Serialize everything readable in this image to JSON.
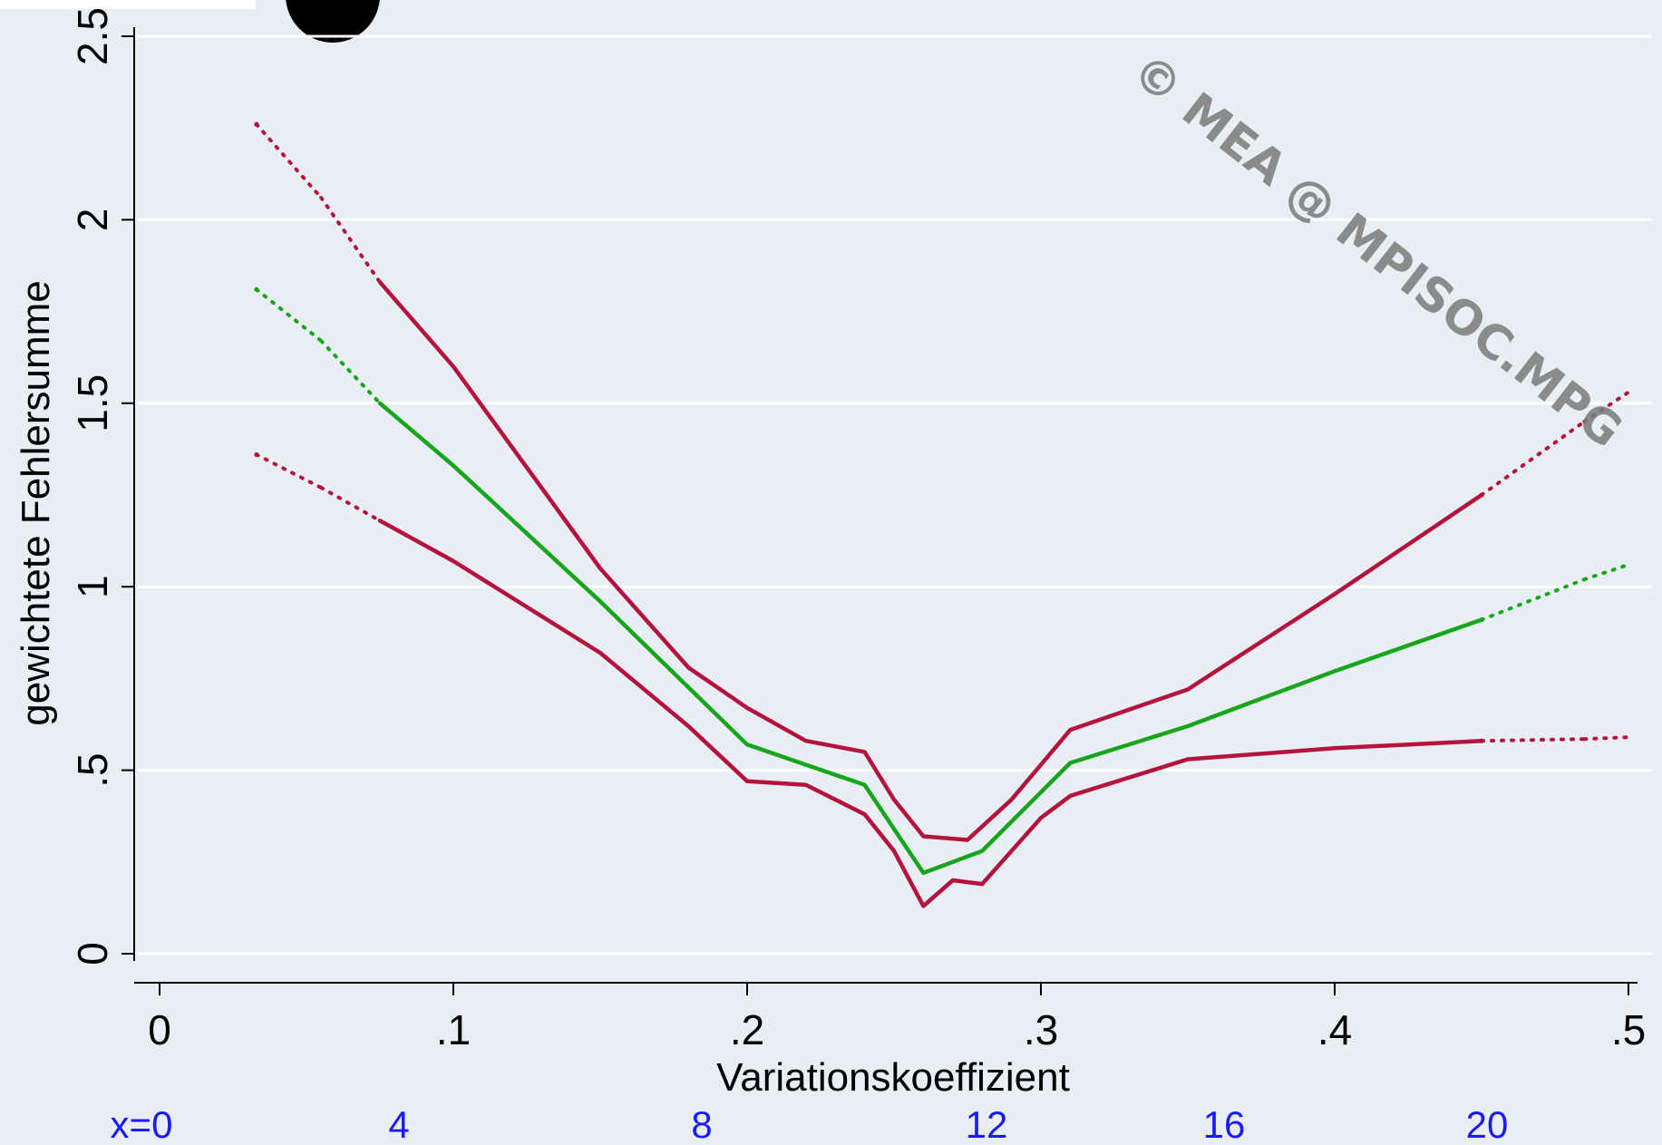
{
  "chart_data": {
    "type": "line",
    "title": "",
    "xlabel": "Variationskoeffizient",
    "ylabel": "gewichtete Fehlersumme",
    "xlim": [
      0,
      0.5
    ],
    "ylim": [
      0,
      2.5
    ],
    "x_ticks": [
      0,
      0.1,
      0.2,
      0.3,
      0.4,
      0.5
    ],
    "x_tick_labels": [
      "0",
      ".1",
      ".2",
      ".3",
      ".4",
      ".5"
    ],
    "y_ticks": [
      0,
      0.5,
      1,
      1.5,
      2,
      2.5
    ],
    "y_tick_labels": [
      "0",
      ".5",
      "1",
      "1.5",
      "2",
      "2.5"
    ],
    "grid": "horizontal",
    "legend": "none",
    "series": [
      {
        "role": "upper",
        "color": "#b5123e",
        "x": [
          0.075,
          0.1,
          0.15,
          0.18,
          0.2,
          0.22,
          0.24,
          0.25,
          0.26,
          0.275,
          0.29,
          0.31,
          0.35,
          0.4,
          0.45
        ],
        "y": [
          1.83,
          1.6,
          1.05,
          0.78,
          0.67,
          0.58,
          0.55,
          0.42,
          0.32,
          0.31,
          0.42,
          0.61,
          0.72,
          0.98,
          1.25
        ]
      },
      {
        "role": "center",
        "color": "#16a61b",
        "x": [
          0.075,
          0.1,
          0.15,
          0.2,
          0.24,
          0.26,
          0.28,
          0.31,
          0.35,
          0.4,
          0.45
        ],
        "y": [
          1.5,
          1.33,
          0.96,
          0.57,
          0.46,
          0.22,
          0.28,
          0.52,
          0.62,
          0.77,
          0.91
        ]
      },
      {
        "role": "lower",
        "color": "#b5123e",
        "x": [
          0.075,
          0.1,
          0.15,
          0.18,
          0.2,
          0.22,
          0.24,
          0.25,
          0.26,
          0.27,
          0.28,
          0.3,
          0.31,
          0.35,
          0.4,
          0.45
        ],
        "y": [
          1.18,
          1.07,
          0.82,
          0.62,
          0.47,
          0.46,
          0.38,
          0.28,
          0.13,
          0.2,
          0.19,
          0.37,
          0.43,
          0.53,
          0.56,
          0.58
        ]
      }
    ],
    "dotted_segments": [
      {
        "color": "#b5123e",
        "x": [
          0.033,
          0.055,
          0.075
        ],
        "y": [
          2.26,
          2.06,
          1.83
        ]
      },
      {
        "color": "#16a61b",
        "x": [
          0.033,
          0.055,
          0.075
        ],
        "y": [
          1.81,
          1.67,
          1.5
        ]
      },
      {
        "color": "#b5123e",
        "x": [
          0.033,
          0.055,
          0.075
        ],
        "y": [
          1.36,
          1.27,
          1.18
        ]
      },
      {
        "color": "#b5123e",
        "x": [
          0.45,
          0.485,
          0.5
        ],
        "y": [
          1.25,
          1.45,
          1.53
        ]
      },
      {
        "color": "#16a61b",
        "x": [
          0.45,
          0.485,
          0.5
        ],
        "y": [
          0.91,
          1.02,
          1.06
        ]
      },
      {
        "color": "#b5123e",
        "x": [
          0.45,
          0.485,
          0.5
        ],
        "y": [
          0.58,
          0.585,
          0.59
        ]
      }
    ],
    "bottom_labels": [
      "x=0",
      "4",
      "8",
      "12",
      "16",
      "20"
    ],
    "bottom_label_color": "#1a1aff",
    "watermark": "© MEA @ MPISOC.MPG"
  }
}
